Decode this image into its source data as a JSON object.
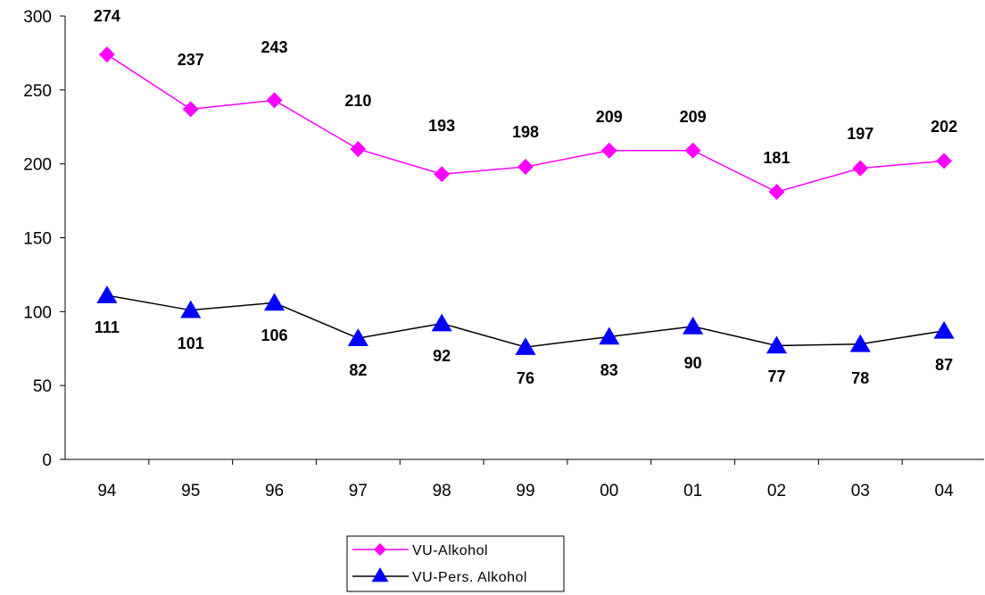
{
  "chart_data": {
    "type": "line",
    "categories": [
      "94",
      "95",
      "96",
      "97",
      "98",
      "99",
      "00",
      "01",
      "02",
      "03",
      "04"
    ],
    "ylim": [
      0,
      300
    ],
    "yticks": [
      0,
      50,
      100,
      150,
      200,
      250,
      300
    ],
    "grid": false,
    "legend_position": "bottom-center",
    "series": [
      {
        "name": "VU-Alkohol",
        "values": [
          274,
          237,
          243,
          210,
          193,
          198,
          209,
          209,
          181,
          197,
          202
        ],
        "color": "#ff00ff",
        "marker": "diamond",
        "label_position": "above"
      },
      {
        "name": "VU-Pers. Alkohol",
        "values": [
          111,
          101,
          106,
          82,
          92,
          76,
          83,
          90,
          77,
          78,
          87
        ],
        "line_color": "#000000",
        "marker_color": "#0000ff",
        "marker": "triangle",
        "label_position": "below"
      }
    ]
  }
}
